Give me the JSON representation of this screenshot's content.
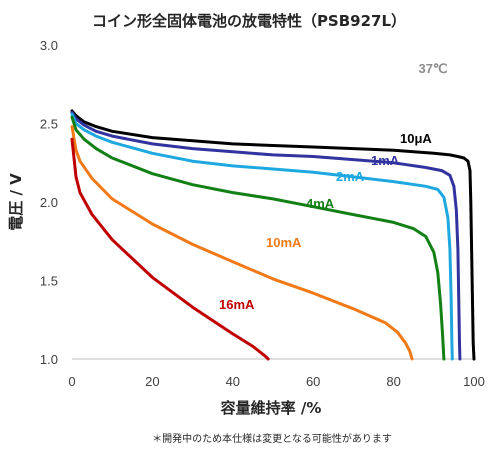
{
  "chart_data": {
    "type": "line",
    "title": "コイン形全固体電池の放電特性（PSB927L）",
    "xlabel": "容量維持率 /%",
    "ylabel": "電圧 / V",
    "xlim": [
      0,
      100
    ],
    "ylim": [
      1.0,
      3.0
    ],
    "x_ticks": [
      "0",
      "20",
      "40",
      "60",
      "80",
      "100"
    ],
    "y_ticks": [
      "1.0",
      "1.5",
      "2.0",
      "2.5",
      "3.0"
    ],
    "annotation": "37℃",
    "footnote": "＊開発中のため本仕様は変更となる可能性があります",
    "grid": false,
    "series": [
      {
        "name": "10μA",
        "color": "#000000",
        "points": [
          [
            0,
            2.58
          ],
          [
            1,
            2.55
          ],
          [
            3,
            2.51
          ],
          [
            6,
            2.48
          ],
          [
            10,
            2.45
          ],
          [
            20,
            2.41
          ],
          [
            30,
            2.39
          ],
          [
            40,
            2.37
          ],
          [
            50,
            2.36
          ],
          [
            60,
            2.35
          ],
          [
            70,
            2.34
          ],
          [
            80,
            2.33
          ],
          [
            85,
            2.32
          ],
          [
            90,
            2.31
          ],
          [
            94,
            2.3
          ],
          [
            96,
            2.29
          ],
          [
            97.5,
            2.28
          ],
          [
            98.5,
            2.26
          ],
          [
            99,
            2.2
          ],
          [
            99.2,
            2.0
          ],
          [
            99.4,
            1.7
          ],
          [
            99.6,
            1.4
          ],
          [
            99.8,
            1.1
          ],
          [
            100,
            1.0
          ]
        ]
      },
      {
        "name": "1mA",
        "color": "#3333a0",
        "points": [
          [
            0,
            2.57
          ],
          [
            1,
            2.53
          ],
          [
            3,
            2.49
          ],
          [
            6,
            2.45
          ],
          [
            10,
            2.42
          ],
          [
            20,
            2.37
          ],
          [
            30,
            2.34
          ],
          [
            40,
            2.32
          ],
          [
            50,
            2.3
          ],
          [
            60,
            2.29
          ],
          [
            70,
            2.27
          ],
          [
            80,
            2.25
          ],
          [
            88,
            2.22
          ],
          [
            92,
            2.2
          ],
          [
            94,
            2.17
          ],
          [
            95,
            2.1
          ],
          [
            95.6,
            1.95
          ],
          [
            96,
            1.7
          ],
          [
            96.2,
            1.4
          ],
          [
            96.4,
            1.1
          ],
          [
            96.5,
            1.0
          ]
        ]
      },
      {
        "name": "2mA",
        "color": "#1fa8e0",
        "points": [
          [
            0,
            2.56
          ],
          [
            1,
            2.5
          ],
          [
            3,
            2.46
          ],
          [
            6,
            2.42
          ],
          [
            10,
            2.38
          ],
          [
            20,
            2.31
          ],
          [
            30,
            2.26
          ],
          [
            40,
            2.23
          ],
          [
            50,
            2.21
          ],
          [
            60,
            2.19
          ],
          [
            70,
            2.16
          ],
          [
            80,
            2.13
          ],
          [
            88,
            2.1
          ],
          [
            91,
            2.08
          ],
          [
            92.5,
            2.03
          ],
          [
            93.5,
            1.9
          ],
          [
            94,
            1.7
          ],
          [
            94.3,
            1.4
          ],
          [
            94.5,
            1.1
          ],
          [
            94.6,
            1.0
          ]
        ]
      },
      {
        "name": "4mA",
        "color": "#138015",
        "points": [
          [
            0,
            2.54
          ],
          [
            1,
            2.46
          ],
          [
            3,
            2.4
          ],
          [
            6,
            2.34
          ],
          [
            10,
            2.28
          ],
          [
            20,
            2.18
          ],
          [
            30,
            2.11
          ],
          [
            40,
            2.06
          ],
          [
            50,
            2.02
          ],
          [
            60,
            1.97
          ],
          [
            70,
            1.92
          ],
          [
            80,
            1.87
          ],
          [
            85,
            1.83
          ],
          [
            88,
            1.78
          ],
          [
            90,
            1.68
          ],
          [
            91,
            1.55
          ],
          [
            91.7,
            1.35
          ],
          [
            92.2,
            1.15
          ],
          [
            92.5,
            1.0
          ]
        ]
      },
      {
        "name": "10mA",
        "color": "#f07a18",
        "points": [
          [
            0,
            2.48
          ],
          [
            1,
            2.33
          ],
          [
            2,
            2.26
          ],
          [
            5,
            2.15
          ],
          [
            10,
            2.02
          ],
          [
            20,
            1.86
          ],
          [
            30,
            1.73
          ],
          [
            40,
            1.62
          ],
          [
            50,
            1.51
          ],
          [
            60,
            1.42
          ],
          [
            70,
            1.32
          ],
          [
            78,
            1.23
          ],
          [
            81,
            1.17
          ],
          [
            83,
            1.1
          ],
          [
            84,
            1.05
          ],
          [
            84.6,
            1.0
          ]
        ]
      },
      {
        "name": "16mA",
        "color": "#c00000",
        "points": [
          [
            0,
            2.4
          ],
          [
            1,
            2.16
          ],
          [
            2,
            2.06
          ],
          [
            5,
            1.92
          ],
          [
            10,
            1.76
          ],
          [
            20,
            1.52
          ],
          [
            30,
            1.33
          ],
          [
            40,
            1.16
          ],
          [
            45,
            1.08
          ],
          [
            48,
            1.02
          ],
          [
            48.8,
            1.0
          ]
        ]
      }
    ]
  }
}
